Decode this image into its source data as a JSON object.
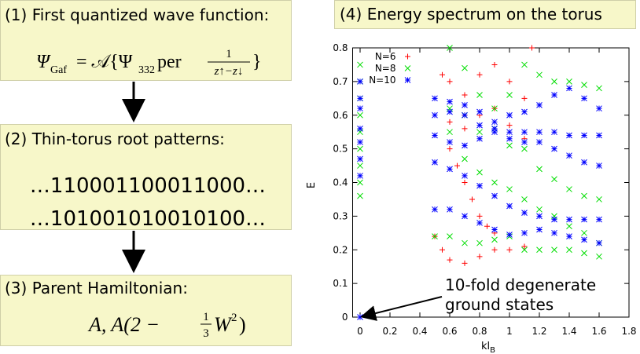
{
  "panels": [
    {
      "title": "(1) First quantized wave function:",
      "formula": {
        "psi": "Ψ",
        "psi_sub": "Gaf",
        "mid": "= 𝒜{Ψ",
        "mid_sub": "332",
        "per": "per",
        "frac_num": "1",
        "frac_den": "z↑−z↓",
        "close": "}"
      }
    },
    {
      "title": "(2) Thin-torus root patterns:",
      "patterns": [
        "…110001100011000…",
        "…101001010010100…"
      ]
    },
    {
      "title": "(3) Parent Hamiltonian:",
      "formula": {
        "lead": "A, A(2 −",
        "frac_num": "1",
        "frac_den": "3",
        "w": "W",
        "w_sup": "2",
        "close": ")"
      }
    }
  ],
  "chart_data": {
    "type": "scatter",
    "title": "(4) Energy spectrum on the torus",
    "xlabel": "kl",
    "xlabel_sub": "B",
    "ylabel": "E",
    "xlim": [
      -0.05,
      1.8
    ],
    "ylim": [
      0,
      0.8
    ],
    "xticks": [
      0,
      0.2,
      0.4,
      0.6,
      0.8,
      1,
      1.2,
      1.4,
      1.6,
      1.8
    ],
    "yticks": [
      0,
      0.1,
      0.2,
      0.3,
      0.4,
      0.5,
      0.6,
      0.7,
      0.8
    ],
    "legend": "upper left",
    "annotation": [
      "10-fold degenerate",
      "ground states"
    ],
    "series": [
      {
        "name": "N=6",
        "color": "#ff0000",
        "marker": "+",
        "x": [
          0.5,
          0.55,
          0.6,
          0.7,
          0.8,
          0.9,
          1.0,
          1.1,
          0.6,
          0.65,
          0.7,
          0.75,
          0.8,
          0.85,
          0.9,
          0.55,
          0.6,
          0.7,
          0.8,
          0.9,
          1.0,
          1.1,
          0.6,
          0.7,
          0.8,
          0.9,
          1.0,
          1.1,
          1.15,
          0.7
        ],
        "values": [
          0.24,
          0.2,
          0.17,
          0.16,
          0.18,
          0.2,
          0.2,
          0.21,
          0.5,
          0.45,
          0.4,
          0.35,
          0.3,
          0.27,
          0.25,
          0.72,
          0.7,
          0.66,
          0.72,
          0.75,
          0.7,
          0.65,
          0.58,
          0.56,
          0.6,
          0.62,
          0.57,
          0.53,
          0.8,
          0.6
        ]
      },
      {
        "name": "N=8",
        "color": "#00dd00",
        "marker": "x",
        "x": [
          0,
          0,
          0,
          0,
          0,
          0,
          0,
          0,
          0,
          0.5,
          0.6,
          0.7,
          0.8,
          0.9,
          1.0,
          1.1,
          1.2,
          1.3,
          1.4,
          1.5,
          1.6,
          0.6,
          0.7,
          0.8,
          0.9,
          1.0,
          1.1,
          1.2,
          1.3,
          1.4,
          1.5,
          1.6,
          0.6,
          0.7,
          0.8,
          0.9,
          1.0,
          1.1,
          1.2,
          1.3,
          1.4,
          1.5,
          1.6,
          0.6,
          0.7,
          0.8,
          0.9,
          1.0,
          1.1,
          1.2,
          1.3,
          1.4,
          1.5,
          1.6
        ],
        "values": [
          0.36,
          0.4,
          0.45,
          0.5,
          0.55,
          0.6,
          0.65,
          0.7,
          0.75,
          0.24,
          0.24,
          0.22,
          0.22,
          0.23,
          0.24,
          0.2,
          0.2,
          0.2,
          0.2,
          0.19,
          0.18,
          0.55,
          0.47,
          0.43,
          0.4,
          0.38,
          0.35,
          0.32,
          0.3,
          0.27,
          0.25,
          0.22,
          0.8,
          0.74,
          0.66,
          0.62,
          0.66,
          0.75,
          0.72,
          0.7,
          0.7,
          0.69,
          0.68,
          0.62,
          0.6,
          0.55,
          0.56,
          0.51,
          0.5,
          0.44,
          0.41,
          0.38,
          0.36,
          0.35
        ]
      },
      {
        "name": "N=10",
        "color": "#0000ff",
        "marker": "*",
        "x": [
          0,
          0,
          0,
          0,
          0,
          0,
          0,
          0,
          0.5,
          0.6,
          0.7,
          0.8,
          0.9,
          1.0,
          1.1,
          1.2,
          1.3,
          1.4,
          1.5,
          1.6,
          0.5,
          0.6,
          0.7,
          0.8,
          0.9,
          1.0,
          1.1,
          1.2,
          1.3,
          1.4,
          1.5,
          1.6,
          0.5,
          0.6,
          0.7,
          0.8,
          0.9,
          1.0,
          1.1,
          1.2,
          1.3,
          1.4,
          1.5,
          1.6,
          0.5,
          0.6,
          0.7,
          0.8,
          0.9,
          1.0,
          1.1,
          1.2,
          1.3,
          1.4,
          1.5,
          1.6,
          0.5,
          0.6,
          0.7,
          0.8,
          0.9,
          1.0,
          1.1,
          1.2,
          1.3,
          1.4,
          1.5,
          1.6
        ],
        "values": [
          0,
          0.42,
          0.47,
          0.52,
          0.56,
          0.62,
          0.65,
          0.7,
          0.32,
          0.32,
          0.3,
          0.28,
          0.26,
          0.245,
          0.25,
          0.26,
          0.25,
          0.24,
          0.23,
          0.22,
          0.46,
          0.44,
          0.42,
          0.39,
          0.36,
          0.33,
          0.31,
          0.3,
          0.29,
          0.29,
          0.29,
          0.29,
          0.54,
          0.52,
          0.51,
          0.53,
          0.55,
          0.53,
          0.52,
          0.52,
          0.5,
          0.48,
          0.46,
          0.45,
          0.65,
          0.64,
          0.6,
          0.57,
          0.58,
          0.6,
          0.61,
          0.63,
          0.66,
          0.68,
          0.65,
          0.62,
          0.6,
          0.61,
          0.63,
          0.61,
          0.56,
          0.55,
          0.55,
          0.55,
          0.55,
          0.54,
          0.54,
          0.54
        ]
      }
    ]
  }
}
